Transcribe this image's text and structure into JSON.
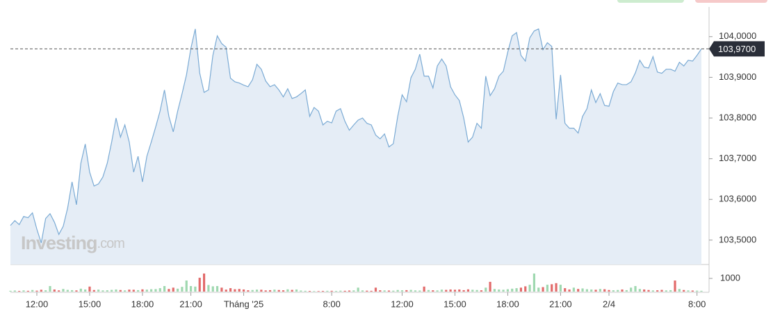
{
  "chart_data": {
    "type": "line",
    "watermark": [
      "Investing",
      ".com"
    ],
    "color": "#7aaad4",
    "fill": "#e5edf6",
    "values": [
      103.536,
      103.548,
      103.538,
      103.558,
      103.555,
      103.567,
      103.527,
      103.493,
      103.553,
      103.565,
      103.544,
      103.514,
      103.534,
      103.579,
      103.643,
      103.587,
      103.689,
      103.736,
      103.667,
      103.633,
      103.638,
      103.655,
      103.689,
      103.741,
      103.8,
      103.753,
      103.783,
      103.741,
      103.667,
      103.706,
      103.643,
      103.706,
      103.741,
      103.778,
      103.817,
      103.869,
      103.804,
      103.766,
      103.817,
      103.86,
      103.906,
      103.971,
      104.019,
      103.911,
      103.863,
      103.869,
      103.954,
      104.002,
      103.983,
      103.974,
      103.898,
      103.889,
      103.886,
      103.881,
      103.877,
      103.894,
      103.932,
      103.92,
      103.891,
      103.877,
      103.882,
      103.869,
      103.852,
      103.872,
      103.848,
      103.852,
      103.86,
      103.869,
      103.804,
      103.826,
      103.817,
      103.783,
      103.792,
      103.788,
      103.817,
      103.823,
      103.792,
      103.77,
      103.783,
      103.795,
      103.8,
      103.787,
      103.783,
      103.758,
      103.749,
      103.761,
      103.729,
      103.737,
      103.804,
      103.857,
      103.84,
      103.899,
      103.92,
      103.957,
      103.903,
      103.903,
      103.874,
      103.928,
      103.945,
      103.928,
      103.877,
      103.857,
      103.843,
      103.8,
      103.741,
      103.753,
      103.787,
      103.775,
      103.903,
      103.855,
      103.872,
      103.903,
      103.915,
      103.962,
      104.002,
      104.01,
      103.954,
      103.94,
      103.997,
      104.014,
      104.019,
      103.968,
      103.985,
      103.976,
      103.797,
      103.906,
      103.787,
      103.775,
      103.775,
      103.763,
      103.804,
      103.823,
      103.869,
      103.838,
      103.86,
      103.831,
      103.829,
      103.865,
      103.886,
      103.882,
      103.882,
      103.889,
      103.911,
      103.942,
      103.925,
      103.923,
      103.951,
      103.913,
      103.91,
      103.92,
      103.92,
      103.915,
      103.937,
      103.928,
      103.942,
      103.94,
      103.954,
      103.97
    ],
    "xlim": [
      0,
      157
    ],
    "xticks": [
      {
        "value": 6,
        "label": "12:00"
      },
      {
        "value": 18,
        "label": "15:00"
      },
      {
        "value": 30,
        "label": "18:00"
      },
      {
        "value": 41,
        "label": "21:00"
      },
      {
        "value": 53,
        "label": "Tháng '25"
      },
      {
        "value": 73,
        "label": "8:00"
      },
      {
        "value": 89,
        "label": "12:00"
      },
      {
        "value": 101,
        "label": "15:00"
      },
      {
        "value": 113,
        "label": "18:00"
      },
      {
        "value": 125,
        "label": "21:00"
      },
      {
        "value": 136,
        "label": "2/4"
      },
      {
        "value": 156,
        "label": "8:00"
      }
    ],
    "ylim": [
      103.44,
      104.073
    ],
    "yticks": [
      {
        "value": 103.5,
        "label": "103,5000"
      },
      {
        "value": 103.6,
        "label": "103,6000"
      },
      {
        "value": 103.7,
        "label": "103,7000"
      },
      {
        "value": 103.8,
        "label": "103,8000"
      },
      {
        "value": 103.9,
        "label": "103,9000"
      },
      {
        "value": 104.0,
        "label": "104,0000"
      }
    ],
    "last_price": {
      "value": 103.97,
      "label": "103,9700"
    },
    "volume": {
      "up_color": "#9fd8b0",
      "down_color": "#e26b6b",
      "values": [
        60,
        80,
        50,
        90,
        60,
        120,
        70,
        140,
        100,
        420,
        160,
        90,
        200,
        130,
        110,
        90,
        220,
        160,
        380,
        120,
        150,
        90,
        100,
        130,
        160,
        120,
        90,
        150,
        140,
        110,
        170,
        150,
        180,
        190,
        260,
        420,
        200,
        300,
        220,
        360,
        840,
        420,
        380,
        1050,
        1370,
        500,
        400,
        420,
        300,
        150,
        260,
        180,
        200,
        160,
        100,
        120,
        150,
        140,
        90,
        110,
        150,
        120,
        100,
        170,
        130,
        160,
        80,
        60,
        50,
        40,
        40,
        50,
        60,
        60,
        50,
        70,
        60,
        80,
        90,
        300,
        90,
        70,
        60,
        300,
        100,
        90,
        80,
        70,
        120,
        100,
        110,
        130,
        90,
        80,
        380,
        120,
        100,
        90,
        150,
        130,
        160,
        140,
        160,
        110,
        170,
        140,
        120,
        100,
        300,
        740,
        200,
        160,
        140,
        180,
        220,
        260,
        300,
        400,
        520,
        1370,
        300,
        340,
        520,
        560,
        640,
        520,
        260,
        160,
        300,
        200,
        240,
        180,
        160,
        140,
        200,
        180,
        120,
        100,
        120,
        160,
        110,
        300,
        420,
        200,
        160,
        120,
        90,
        100,
        130,
        90,
        110,
        840,
        200,
        120,
        90,
        80,
        70,
        60
      ],
      "ylim": [
        0,
        2000
      ],
      "yticks": [
        1000
      ]
    }
  }
}
